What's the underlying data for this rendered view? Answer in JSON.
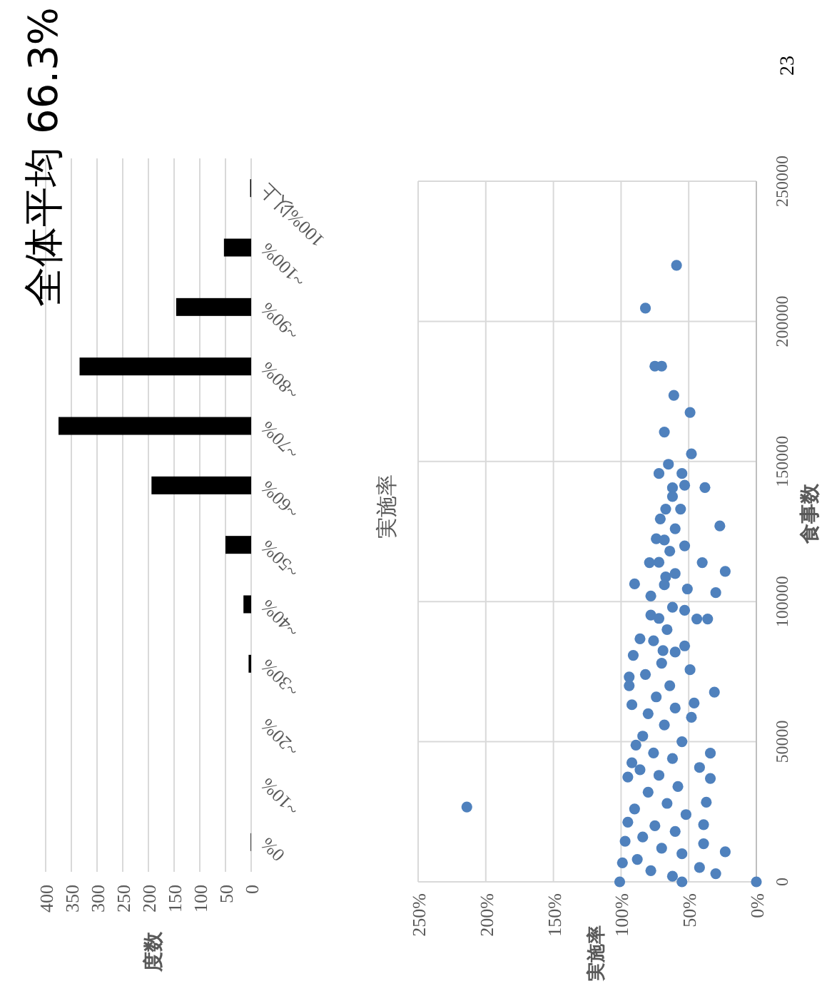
{
  "chart_data": [
    {
      "type": "bar",
      "orientation": "horizontal",
      "title": "全体平均 66.3%",
      "annotations": [
        "度数"
      ],
      "categories": [
        "100%以上",
        "~100%",
        "~90%",
        "~80%",
        "~70%",
        "~60%",
        "~50%",
        "~40%",
        "~30%",
        "~20%",
        "~10%",
        "0%"
      ],
      "series": [
        {
          "color": "#000000",
          "values": [
            2,
            53,
            146,
            334,
            375,
            194,
            50,
            15,
            5,
            0,
            0,
            1
          ]
        }
      ],
      "xlim": [
        400,
        0
      ],
      "xticks": [
        0,
        50,
        100,
        150,
        200,
        250,
        300,
        350,
        400
      ],
      "grid": "x"
    },
    {
      "type": "scatter",
      "title": "実施率",
      "ylabel": "食事数",
      "marker": "circle",
      "grid": true,
      "xlim": [
        250,
        0
      ],
      "xticks": [
        {
          "value": 0,
          "label": "0%"
        },
        {
          "value": 50,
          "label": "50%"
        },
        {
          "value": 100,
          "label": "100%"
        },
        {
          "value": 150,
          "label": "150%"
        },
        {
          "value": 200,
          "label": "200%"
        },
        {
          "value": 250,
          "label": "250%"
        }
      ],
      "ylim": [
        0,
        250000
      ],
      "yticks": [
        0,
        50000,
        100000,
        150000,
        200000,
        250000
      ],
      "annotations": [
        "実施率",
        "23"
      ],
      "series": [
        {
          "color": "#4f81bd",
          "x": [
            59,
            82,
            75,
            70,
            61,
            49,
            68,
            48,
            38,
            27,
            65,
            72,
            55,
            53,
            62,
            62,
            67,
            71,
            56,
            74,
            53,
            79,
            40,
            23,
            90,
            30,
            51,
            67,
            78,
            44,
            36,
            53,
            86,
            91,
            53,
            69,
            94,
            94,
            49,
            31,
            92,
            46,
            48,
            89,
            34,
            95,
            34,
            42,
            92,
            37,
            95,
            39,
            97,
            23,
            39,
            101,
            99,
            30,
            55,
            42,
            214,
            0,
            62,
            78,
            88,
            55,
            70,
            84,
            60,
            75,
            52,
            90,
            66,
            80,
            58,
            72,
            86,
            62,
            76,
            55,
            84,
            68,
            80,
            60,
            74,
            64,
            82,
            70,
            60,
            76,
            66,
            72,
            62,
            78,
            68,
            60,
            72,
            64,
            68,
            60
          ],
          "values": [
            220000,
            204700,
            184000,
            184000,
            173600,
            167500,
            160500,
            152700,
            140700,
            127000,
            149000,
            145700,
            145700,
            141500,
            140600,
            137500,
            133000,
            129500,
            133000,
            122400,
            119900,
            113900,
            113900,
            110800,
            106300,
            103200,
            104500,
            108800,
            95200,
            93800,
            93800,
            96900,
            86700,
            80800,
            84200,
            82500,
            73100,
            70000,
            75700,
            67700,
            63200,
            63800,
            58700,
            48800,
            45900,
            37400,
            36900,
            40800,
            42500,
            28400,
            21300,
            20400,
            14500,
            10700,
            13600,
            0,
            6800,
            2900,
            0,
            5100,
            26700,
            0,
            2000,
            4000,
            8000,
            10000,
            12000,
            16000,
            18000,
            20000,
            24000,
            26000,
            28000,
            32000,
            34000,
            38000,
            40000,
            44000,
            46000,
            50000,
            52000,
            56000,
            60000,
            62000,
            66000,
            70000,
            74000,
            78000,
            82000,
            86000,
            90000,
            94000,
            98000,
            102000,
            106000,
            110000,
            114000,
            118000,
            122000,
            126000
          ]
        }
      ]
    }
  ]
}
